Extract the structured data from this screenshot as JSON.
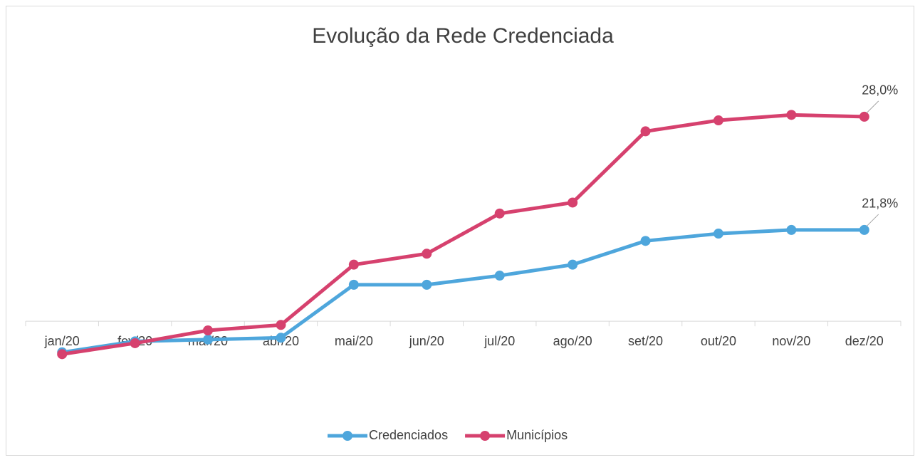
{
  "chart_data": {
    "type": "line",
    "title": "Evolução da Rede Credenciada",
    "categories": [
      "jan/20",
      "fev/20",
      "mar/20",
      "abr/20",
      "mai/20",
      "jun/20",
      "jul/20",
      "ago/20",
      "set/20",
      "out/20",
      "nov/20",
      "dez/20"
    ],
    "series": [
      {
        "name": "Credenciados",
        "color": "#4ea6dc",
        "values": [
          15.1,
          15.7,
          15.8,
          15.9,
          18.8,
          18.8,
          19.3,
          19.9,
          21.2,
          21.6,
          21.8,
          21.8
        ],
        "value_labels": [
          null,
          null,
          null,
          null,
          null,
          null,
          null,
          null,
          null,
          null,
          null,
          "21,8%"
        ]
      },
      {
        "name": "Municípios",
        "color": "#d6416e",
        "values": [
          15.0,
          15.6,
          16.3,
          16.6,
          19.9,
          20.5,
          22.7,
          23.3,
          27.2,
          27.8,
          28.1,
          28.0
        ],
        "value_labels": [
          null,
          null,
          null,
          null,
          null,
          null,
          null,
          null,
          null,
          null,
          null,
          "28,0%"
        ]
      }
    ],
    "ylim": [
      14,
      30
    ],
    "xaxis_crossing": 16.8,
    "legend": "bottom"
  }
}
